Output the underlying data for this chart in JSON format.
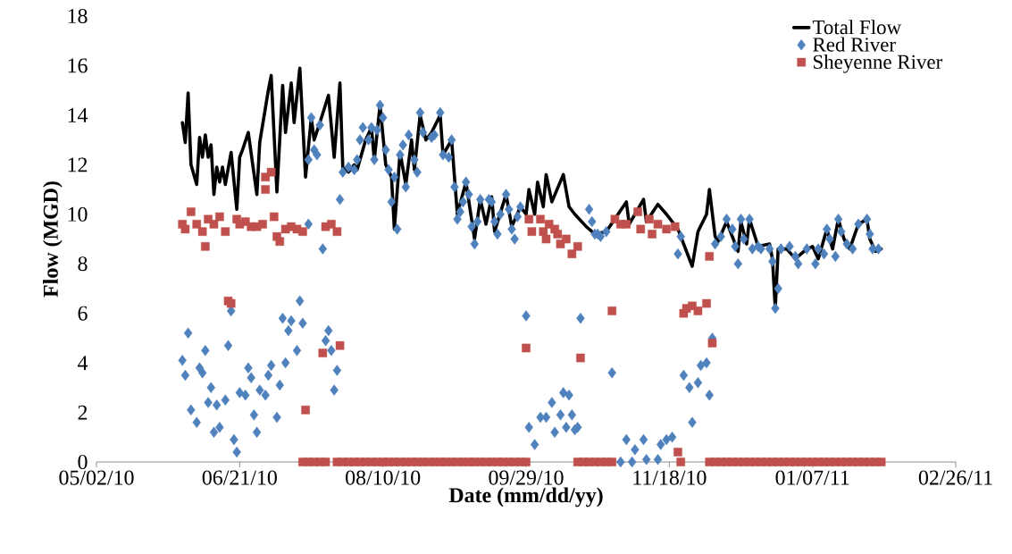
{
  "chart_data": {
    "type": "line",
    "xlabel": "Date (mm/dd/yy)",
    "ylabel": "Flow (MGD)",
    "xlim": [
      "2010-05-02",
      "2011-02-26"
    ],
    "ylim": [
      0,
      18
    ],
    "xticks": [
      {
        "value": "2010-05-02",
        "label": "05/02/10"
      },
      {
        "value": "2010-06-21",
        "label": "06/21/10"
      },
      {
        "value": "2010-08-10",
        "label": "08/10/10"
      },
      {
        "value": "2010-09-29",
        "label": "09/29/10"
      },
      {
        "value": "2010-11-18",
        "label": "11/18/10"
      },
      {
        "value": "2011-01-07",
        "label": "01/07/11"
      },
      {
        "value": "2011-02-26",
        "label": "02/26/11"
      }
    ],
    "yticks": [
      0,
      2,
      4,
      6,
      8,
      10,
      12,
      14,
      16,
      18
    ],
    "legend": "top right",
    "series": [
      {
        "name": "Total Flow",
        "color": "#000000",
        "marker": "none",
        "x": [
          "2010-06-01",
          "2010-06-02",
          "2010-06-03",
          "2010-06-04",
          "2010-06-06",
          "2010-06-07",
          "2010-06-08",
          "2010-06-09",
          "2010-06-10",
          "2010-06-11",
          "2010-06-12",
          "2010-06-13",
          "2010-06-14",
          "2010-06-15",
          "2010-06-16",
          "2010-06-18",
          "2010-06-20",
          "2010-06-21",
          "2010-06-22",
          "2010-06-24",
          "2010-06-27",
          "2010-06-28",
          "2010-07-01",
          "2010-07-02",
          "2010-07-04",
          "2010-07-06",
          "2010-07-07",
          "2010-07-09",
          "2010-07-10",
          "2010-07-12",
          "2010-07-14",
          "2010-07-16",
          "2010-07-17",
          "2010-07-19",
          "2010-07-22",
          "2010-07-24",
          "2010-07-26",
          "2010-07-27",
          "2010-07-29",
          "2010-07-31",
          "2010-08-01",
          "2010-08-04",
          "2010-08-06",
          "2010-08-07",
          "2010-08-09",
          "2010-08-11",
          "2010-08-13",
          "2010-08-14",
          "2010-08-16",
          "2010-08-18",
          "2010-08-20",
          "2010-08-21",
          "2010-08-23",
          "2010-08-25",
          "2010-08-27",
          "2010-08-30",
          "2010-08-31",
          "2010-09-03",
          "2010-09-05",
          "2010-09-08",
          "2010-09-11",
          "2010-09-13",
          "2010-09-15",
          "2010-09-17",
          "2010-09-18",
          "2010-09-22",
          "2010-09-24",
          "2010-09-27",
          "2010-09-29",
          "2010-09-30",
          "2010-10-02",
          "2010-10-03",
          "2010-10-05",
          "2010-10-06",
          "2010-10-08",
          "2010-10-12",
          "2010-10-14",
          "2010-10-16",
          "2010-10-20",
          "2010-10-23",
          "2010-10-27",
          "2010-11-03",
          "2010-11-04",
          "2010-11-09",
          "2010-11-10",
          "2010-11-14",
          "2010-11-17",
          "2010-11-21",
          "2010-11-26",
          "2010-11-28",
          "2010-12-01",
          "2010-12-02",
          "2010-12-04",
          "2010-12-05",
          "2010-12-08",
          "2010-12-12",
          "2010-12-13",
          "2010-12-15",
          "2010-12-16",
          "2010-12-19",
          "2010-12-23",
          "2010-12-24",
          "2010-12-25",
          "2010-12-26",
          "2010-12-29",
          "2011-01-01",
          "2011-01-04",
          "2011-01-07",
          "2011-01-09",
          "2011-01-12",
          "2011-01-14",
          "2011-01-16",
          "2011-01-18",
          "2011-01-20",
          "2011-01-23",
          "2011-01-26",
          "2011-01-27",
          "2011-01-29",
          "2011-01-31"
        ],
        "values": [
          13.7,
          12.9,
          14.9,
          12.0,
          11.2,
          13.1,
          12.3,
          13.2,
          12.3,
          12.8,
          10.8,
          11.9,
          11.3,
          11.9,
          11.2,
          12.5,
          10.2,
          12.3,
          12.6,
          13.3,
          10.8,
          12.9,
          15.0,
          15.6,
          10.9,
          15.2,
          13.3,
          15.3,
          13.7,
          15.9,
          11.5,
          13.9,
          13.0,
          13.7,
          14.8,
          12.3,
          15.3,
          11.9,
          11.7,
          12.0,
          11.8,
          13.0,
          13.5,
          12.2,
          14.4,
          12.0,
          11.5,
          9.4,
          12.5,
          11.2,
          13.0,
          11.8,
          14.0,
          13.0,
          13.3,
          14.0,
          12.4,
          13.0,
          10.0,
          11.3,
          9.0,
          10.6,
          9.6,
          10.7,
          9.3,
          10.8,
          9.5,
          10.3,
          10.0,
          11.0,
          10.0,
          11.3,
          10.3,
          11.6,
          10.5,
          11.6,
          10.3,
          10.0,
          9.5,
          9.2,
          9.3,
          10.5,
          9.6,
          10.6,
          9.7,
          10.4,
          10.0,
          9.4,
          7.9,
          9.3,
          10.0,
          11.0,
          9.1,
          8.9,
          9.7,
          8.5,
          9.7,
          8.8,
          9.8,
          8.7,
          8.8,
          8.2,
          6.2,
          8.6,
          8.6,
          8.2,
          8.5,
          8.7,
          8.2,
          9.4,
          8.6,
          9.8,
          9.0,
          8.6,
          9.6,
          9.8,
          9.0,
          8.5,
          8.6
        ]
      },
      {
        "name": "Red River",
        "type": "scatter",
        "color": "#4f81bd",
        "marker": "diamond",
        "x": [
          "2010-06-01",
          "2010-06-02",
          "2010-06-03",
          "2010-06-04",
          "2010-06-06",
          "2010-06-07",
          "2010-06-08",
          "2010-06-09",
          "2010-06-10",
          "2010-06-11",
          "2010-06-12",
          "2010-06-13",
          "2010-06-14",
          "2010-06-16",
          "2010-06-17",
          "2010-06-18",
          "2010-06-19",
          "2010-06-20",
          "2010-06-21",
          "2010-06-23",
          "2010-06-24",
          "2010-06-25",
          "2010-06-26",
          "2010-06-27",
          "2010-06-28",
          "2010-06-30",
          "2010-07-01",
          "2010-07-02",
          "2010-07-04",
          "2010-07-05",
          "2010-07-06",
          "2010-07-07",
          "2010-07-08",
          "2010-07-09",
          "2010-07-11",
          "2010-07-12",
          "2010-07-13",
          "2010-07-15",
          "2010-07-15",
          "2010-07-16",
          "2010-07-17",
          "2010-07-18",
          "2010-07-19",
          "2010-07-20",
          "2010-07-21",
          "2010-07-22",
          "2010-07-23",
          "2010-07-24",
          "2010-07-25",
          "2010-07-26",
          "2010-07-27",
          "2010-07-29",
          "2010-07-31",
          "2010-08-01",
          "2010-08-02",
          "2010-08-03",
          "2010-08-05",
          "2010-08-06",
          "2010-08-07",
          "2010-08-08",
          "2010-08-09",
          "2010-08-10",
          "2010-08-11",
          "2010-08-12",
          "2010-08-13",
          "2010-08-14",
          "2010-08-15",
          "2010-08-16",
          "2010-08-17",
          "2010-08-18",
          "2010-08-19",
          "2010-08-21",
          "2010-08-22",
          "2010-08-23",
          "2010-08-24",
          "2010-08-27",
          "2010-08-28",
          "2010-08-30",
          "2010-08-31",
          "2010-09-02",
          "2010-09-03",
          "2010-09-04",
          "2010-09-05",
          "2010-09-06",
          "2010-09-07",
          "2010-09-08",
          "2010-09-09",
          "2010-09-10",
          "2010-09-11",
          "2010-09-12",
          "2010-09-13",
          "2010-09-16",
          "2010-09-17",
          "2010-09-18",
          "2010-09-19",
          "2010-09-20",
          "2010-09-22",
          "2010-09-23",
          "2010-09-24",
          "2010-09-25",
          "2010-09-26",
          "2010-09-27",
          "2010-09-29",
          "2010-09-30",
          "2010-10-02",
          "2010-10-04",
          "2010-10-06",
          "2010-10-08",
          "2010-10-09",
          "2010-10-11",
          "2010-10-12",
          "2010-10-13",
          "2010-10-14",
          "2010-10-15",
          "2010-10-16",
          "2010-10-17",
          "2010-10-18",
          "2010-10-21",
          "2010-10-22",
          "2010-10-23",
          "2010-10-24",
          "2010-10-25",
          "2010-10-27",
          "2010-10-29",
          "2010-11-01",
          "2010-11-03",
          "2010-11-05",
          "2010-11-06",
          "2010-11-09",
          "2010-11-10",
          "2010-11-14",
          "2010-11-15",
          "2010-11-17",
          "2010-11-19",
          "2010-11-21",
          "2010-11-22",
          "2010-11-23",
          "2010-11-25",
          "2010-11-26",
          "2010-11-28",
          "2010-11-29",
          "2010-12-01",
          "2010-12-02",
          "2010-12-03",
          "2010-12-04",
          "2010-12-06",
          "2010-12-08",
          "2010-12-10",
          "2010-12-11",
          "2010-12-12",
          "2010-12-13",
          "2010-12-14",
          "2010-12-16",
          "2010-12-17",
          "2010-12-19",
          "2010-12-20",
          "2010-12-23",
          "2010-12-24",
          "2010-12-25",
          "2010-12-26",
          "2010-12-27",
          "2010-12-30",
          "2011-01-01",
          "2011-01-02",
          "2011-01-05",
          "2011-01-08",
          "2011-01-09",
          "2011-01-11",
          "2011-01-12",
          "2011-01-13",
          "2011-01-15",
          "2011-01-16",
          "2011-01-17",
          "2011-01-19",
          "2011-01-21",
          "2011-01-23",
          "2011-01-26",
          "2011-01-27",
          "2011-01-28",
          "2011-01-30"
        ],
        "values": [
          4.1,
          3.5,
          5.2,
          2.1,
          1.6,
          3.8,
          3.6,
          4.5,
          2.4,
          3.0,
          1.2,
          2.3,
          1.4,
          2.5,
          4.7,
          6.1,
          0.9,
          0.4,
          2.8,
          2.7,
          3.8,
          3.4,
          1.9,
          1.2,
          2.9,
          2.7,
          3.5,
          3.9,
          1.8,
          3.1,
          5.8,
          4.0,
          5.3,
          5.7,
          4.5,
          6.5,
          5.6,
          9.6,
          12.2,
          13.9,
          12.6,
          12.4,
          13.6,
          8.6,
          4.9,
          5.3,
          4.5,
          2.9,
          3.7,
          10.6,
          11.7,
          11.9,
          11.8,
          12.2,
          13.0,
          13.5,
          13.0,
          13.5,
          12.2,
          13.4,
          14.4,
          13.9,
          12.6,
          11.8,
          10.5,
          11.5,
          9.4,
          12.4,
          12.8,
          11.1,
          13.2,
          12.2,
          11.7,
          14.1,
          13.3,
          13.1,
          13.2,
          14.1,
          12.4,
          12.3,
          13.0,
          11.1,
          9.8,
          10.1,
          10.5,
          11.3,
          10.8,
          9.5,
          8.8,
          9.7,
          10.6,
          10.6,
          10.5,
          9.7,
          9.2,
          10.0,
          10.8,
          10.2,
          9.4,
          9.0,
          9.9,
          10.3,
          5.9,
          1.4,
          0.7,
          1.8,
          1.8,
          2.4,
          1.2,
          1.9,
          2.8,
          1.4,
          2.7,
          1.9,
          1.3,
          1.4,
          5.8,
          10.2,
          9.7,
          9.2,
          9.2,
          9.1,
          9.3,
          3.6,
          0,
          0.9,
          0,
          0.5,
          0.9,
          0.1,
          0.1,
          0.7,
          0.9,
          1.0,
          8.4,
          9.1,
          3.5,
          3.0,
          1.6,
          3.2,
          3.9,
          4.0,
          2.7,
          5.0,
          8.8,
          9.1,
          9.8,
          9.4,
          8.7,
          8.0,
          9.8,
          9.0,
          9.8,
          8.6,
          8.7,
          8.6,
          8.6,
          8.1,
          6.2,
          7.0,
          8.6,
          8.7,
          8.3,
          8.0,
          8.6,
          8.0,
          8.6,
          8.4,
          9.4,
          9.0,
          8.3,
          9.8,
          9.3,
          8.8,
          8.6,
          9.6,
          9.8,
          9.2,
          8.6,
          8.6
        ]
      },
      {
        "name": "Sheyenne River",
        "type": "scatter",
        "color": "#c0504d",
        "marker": "square",
        "x": [
          "2010-06-01",
          "2010-06-02",
          "2010-06-04",
          "2010-06-06",
          "2010-06-08",
          "2010-06-09",
          "2010-06-10",
          "2010-06-12",
          "2010-06-14",
          "2010-06-16",
          "2010-06-17",
          "2010-06-18",
          "2010-06-20",
          "2010-06-21",
          "2010-06-23",
          "2010-06-25",
          "2010-06-27",
          "2010-06-29",
          "2010-06-30",
          "2010-06-30",
          "2010-07-02",
          "2010-07-03",
          "2010-07-04",
          "2010-07-05",
          "2010-07-07",
          "2010-07-09",
          "2010-07-11",
          "2010-07-13",
          "2010-07-13",
          "2010-07-14",
          "2010-07-15",
          "2010-07-17",
          "2010-07-19",
          "2010-07-20",
          "2010-07-21",
          "2010-07-21",
          "2010-07-23",
          "2010-07-25",
          "2010-07-26",
          "2010-07-25",
          "2010-07-27",
          "2010-07-29",
          "2010-07-31",
          "2010-08-02",
          "2010-08-04",
          "2010-08-06",
          "2010-08-08",
          "2010-08-10",
          "2010-08-12",
          "2010-08-14",
          "2010-08-16",
          "2010-08-18",
          "2010-08-20",
          "2010-08-22",
          "2010-08-24",
          "2010-08-26",
          "2010-08-28",
          "2010-08-30",
          "2010-09-01",
          "2010-09-03",
          "2010-09-05",
          "2010-09-07",
          "2010-09-09",
          "2010-09-11",
          "2010-09-13",
          "2010-09-15",
          "2010-09-17",
          "2010-09-19",
          "2010-09-21",
          "2010-09-23",
          "2010-09-25",
          "2010-09-27",
          "2010-09-29",
          "2010-09-29",
          "2010-09-30",
          "2010-10-01",
          "2010-10-04",
          "2010-10-05",
          "2010-10-06",
          "2010-10-07",
          "2010-10-09",
          "2010-10-10",
          "2010-10-11",
          "2010-10-13",
          "2010-10-15",
          "2010-10-17",
          "2010-10-18",
          "2010-10-17",
          "2010-10-19",
          "2010-10-21",
          "2010-10-23",
          "2010-10-25",
          "2010-10-27",
          "2010-10-29",
          "2010-10-29",
          "2010-10-30",
          "2010-11-01",
          "2010-11-03",
          "2010-11-07",
          "2010-11-08",
          "2010-11-11",
          "2010-11-12",
          "2010-11-14",
          "2010-11-17",
          "2010-11-20",
          "2010-11-21",
          "2010-11-22",
          "2010-11-23",
          "2010-11-24",
          "2010-11-26",
          "2010-11-28",
          "2010-12-01",
          "2010-12-02",
          "2010-12-03",
          "2010-12-02",
          "2010-12-04",
          "2010-12-06",
          "2010-12-08",
          "2010-12-10",
          "2010-12-12",
          "2010-12-14",
          "2010-12-16",
          "2010-12-18",
          "2010-12-20",
          "2010-12-22",
          "2010-12-24",
          "2010-12-26",
          "2010-12-28",
          "2010-12-30",
          "2011-01-01",
          "2011-01-03",
          "2011-01-05",
          "2011-01-07",
          "2011-01-09",
          "2011-01-11",
          "2011-01-13",
          "2011-01-15",
          "2011-01-17",
          "2011-01-19",
          "2011-01-21",
          "2011-01-23",
          "2011-01-25",
          "2011-01-27",
          "2011-01-29",
          "2011-01-31"
        ],
        "values": [
          9.6,
          9.4,
          10.1,
          9.6,
          9.3,
          8.7,
          9.8,
          9.6,
          9.9,
          9.3,
          6.5,
          6.4,
          9.8,
          9.6,
          9.7,
          9.5,
          9.5,
          9.6,
          11.0,
          11.5,
          11.7,
          9.9,
          9.1,
          8.9,
          9.4,
          9.5,
          9.4,
          9.3,
          0,
          2.1,
          0,
          0,
          0,
          4.4,
          0,
          9.5,
          9.6,
          9.3,
          4.7,
          0,
          0,
          0,
          0,
          0,
          0,
          0,
          0,
          0,
          0,
          0,
          0,
          0,
          0,
          0,
          0,
          0,
          0,
          0,
          0,
          0,
          0,
          0,
          0,
          0,
          0,
          0,
          0,
          0,
          0,
          0,
          0,
          0,
          0,
          4.6,
          9.8,
          9.3,
          9.8,
          9.3,
          9.0,
          9.6,
          9.4,
          9.2,
          8.8,
          9.0,
          8.4,
          8.7,
          4.2,
          0,
          0,
          0,
          0,
          0,
          0,
          0,
          6.1,
          9.8,
          9.6,
          9.6,
          10.1,
          9.4,
          9.8,
          9.2,
          9.6,
          9.4,
          9.5,
          0.4,
          0,
          6.0,
          6.2,
          6.3,
          6.1,
          6.4,
          8.3,
          4.8,
          0,
          0,
          0,
          0,
          0,
          0,
          0,
          0,
          0,
          0,
          0,
          0,
          0,
          0,
          0,
          0,
          0,
          0,
          0,
          0,
          0,
          0,
          0,
          0,
          0,
          0,
          0,
          0,
          0,
          0,
          0
        ]
      }
    ]
  }
}
